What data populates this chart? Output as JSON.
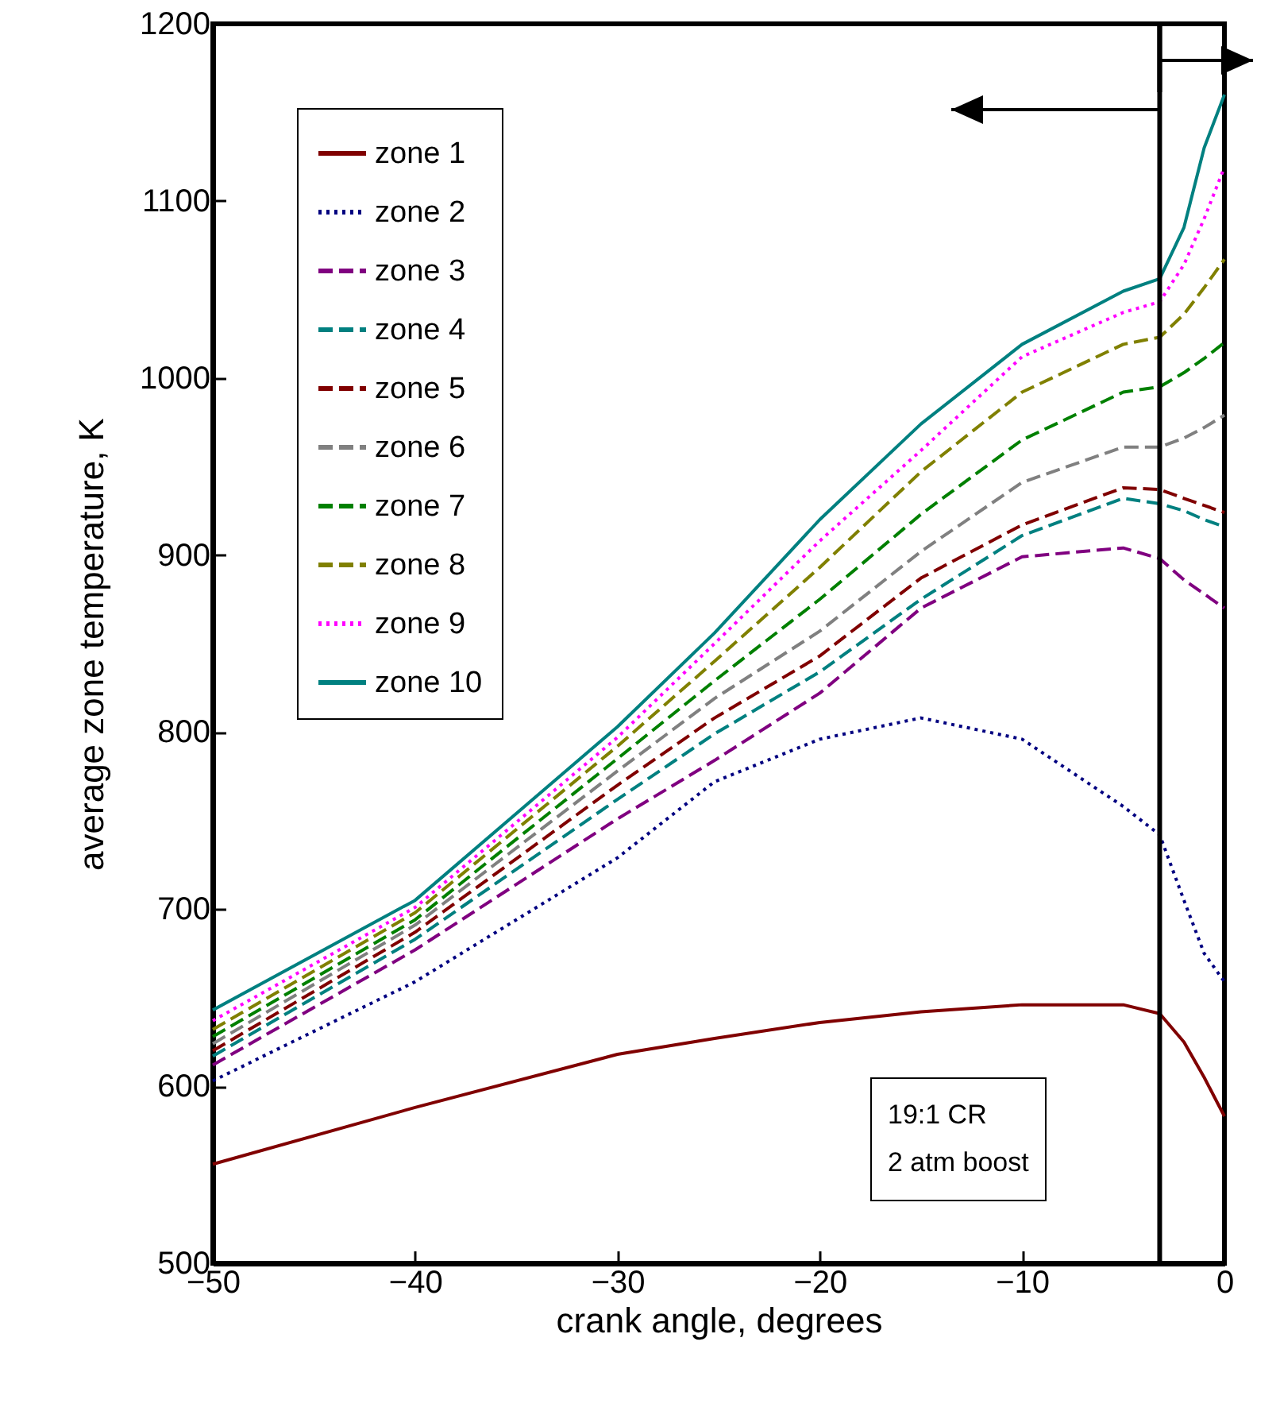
{
  "chart_data": {
    "type": "line",
    "xlabel": "crank angle, degrees",
    "ylabel": "average zone temperature, K",
    "x": [
      -50,
      -40,
      -30,
      -25.2,
      -20,
      -15,
      -10,
      -5,
      -3.2,
      -2,
      -1,
      0
    ],
    "series": [
      {
        "name": "zone 1",
        "color": "#800000",
        "line_style": "solid",
        "values": [
          556,
          588,
          618,
          627,
          636,
          642,
          646,
          646,
          641,
          625,
          605,
          583
        ]
      },
      {
        "name": "zone 2",
        "color": "#000080",
        "line_style": "dotted",
        "values": [
          603,
          659,
          729,
          772,
          796,
          808,
          796,
          758,
          742,
          705,
          675,
          659
        ]
      },
      {
        "name": "zone 3",
        "color": "#800080",
        "line_style": "dashed",
        "values": [
          612,
          677,
          751,
          784,
          822,
          870,
          899,
          904,
          898,
          886,
          878,
          870
        ]
      },
      {
        "name": "zone 4",
        "color": "#008080",
        "line_style": "dashed",
        "values": [
          617,
          683,
          762,
          799,
          834,
          875,
          911,
          932,
          929,
          925,
          920,
          916
        ]
      },
      {
        "name": "zone 5",
        "color": "#800000",
        "line_style": "dashed",
        "values": [
          620,
          687,
          770,
          808,
          843,
          887,
          917,
          938,
          937,
          932,
          928,
          924
        ]
      },
      {
        "name": "zone 6",
        "color": "#808080",
        "line_style": "dashed",
        "values": [
          624,
          691,
          778,
          819,
          857,
          902,
          941,
          961,
          961,
          966,
          972,
          979
        ]
      },
      {
        "name": "zone 7",
        "color": "#008000",
        "line_style": "dashed",
        "values": [
          628,
          694,
          785,
          829,
          875,
          923,
          965,
          992,
          995,
          1003,
          1011,
          1020
        ]
      },
      {
        "name": "zone 8",
        "color": "#808000",
        "line_style": "dashed",
        "values": [
          632,
          698,
          792,
          840,
          893,
          947,
          992,
          1019,
          1023,
          1036,
          1051,
          1067
        ]
      },
      {
        "name": "zone 9",
        "color": "#ff00ff",
        "line_style": "dotted",
        "values": [
          637,
          701,
          797,
          850,
          908,
          959,
          1012,
          1037,
          1043,
          1064,
          1090,
          1119
        ]
      },
      {
        "name": "zone 10",
        "color": "#008080",
        "line_style": "solid",
        "values": [
          643,
          705,
          803,
          856,
          920,
          974,
          1019,
          1049,
          1056,
          1085,
          1130,
          1160
        ]
      }
    ],
    "xlim": [
      -50,
      0
    ],
    "xticks": [
      -50,
      -40,
      -30,
      -20,
      -10,
      0
    ],
    "ylim": [
      500,
      1200
    ],
    "yticks": [
      500,
      600,
      700,
      800,
      900,
      1000,
      1100,
      1200
    ],
    "grid": false,
    "legend": "top left",
    "marker": "none",
    "ref_lines": [
      {
        "axis": "x",
        "value": -3.2,
        "color": "#000000"
      }
    ],
    "annotations": [
      "19:1 CR",
      "2 atm boost"
    ]
  }
}
